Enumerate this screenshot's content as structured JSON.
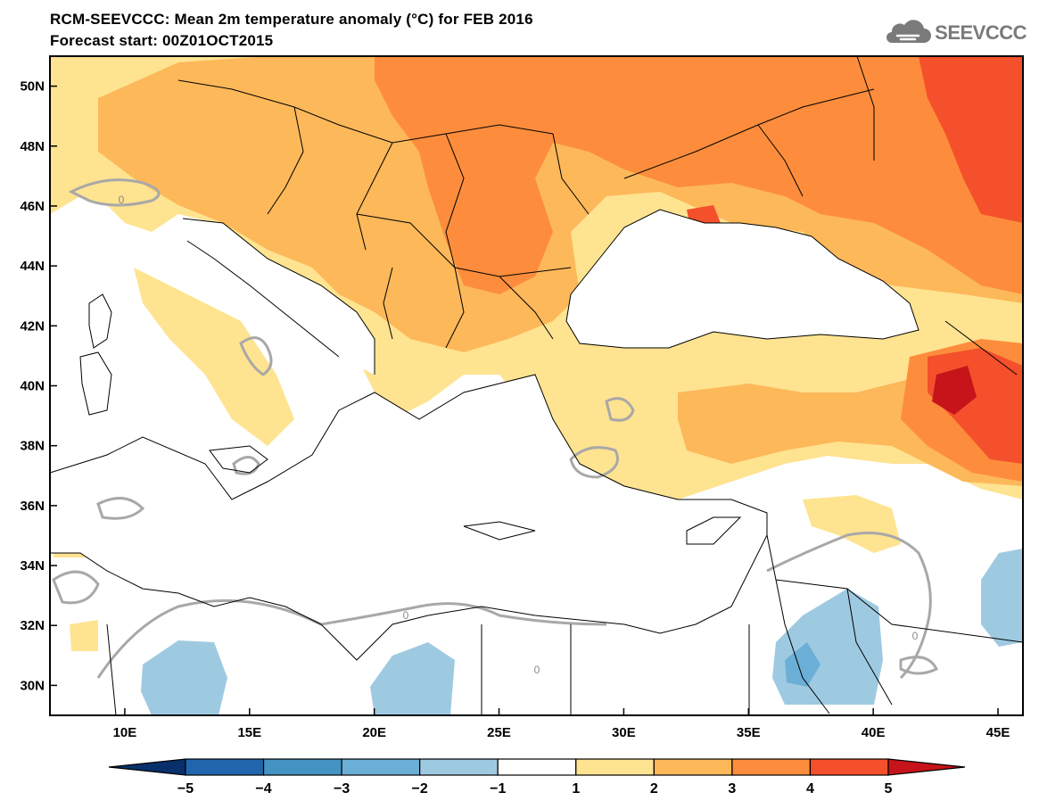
{
  "title": "RCM-SEEVCCC: Mean 2m temperature anomaly (°C) for FEB 2016",
  "subtitle": "Forecast start: 00Z01OCT2015",
  "logo": {
    "text": "SEEVCCC",
    "icon": "cloud-icon"
  },
  "map": {
    "lon_range": [
      7,
      46
    ],
    "lat_range": [
      29,
      51
    ],
    "x_ticks": [
      "10E",
      "15E",
      "20E",
      "25E",
      "30E",
      "35E",
      "40E",
      "45E"
    ],
    "x_tick_values": [
      10,
      15,
      20,
      25,
      30,
      35,
      40,
      45
    ],
    "y_ticks": [
      "30N",
      "32N",
      "34N",
      "36N",
      "38N",
      "40N",
      "42N",
      "44N",
      "46N",
      "48N",
      "50N"
    ],
    "y_tick_values": [
      30,
      32,
      34,
      36,
      38,
      40,
      42,
      44,
      46,
      48,
      50
    ],
    "contour_label": "0"
  },
  "colorbar": {
    "labels": [
      "−5",
      "−4",
      "−3",
      "−2",
      "−1",
      "1",
      "2",
      "3",
      "4",
      "5"
    ],
    "colors": [
      "#08306b",
      "#2166ac",
      "#4393c3",
      "#6baed6",
      "#9ecae1",
      "#ffffff",
      "#fee391",
      "#fdb85a",
      "#fd8d3c",
      "#f4502b",
      "#c6141a"
    ]
  }
}
